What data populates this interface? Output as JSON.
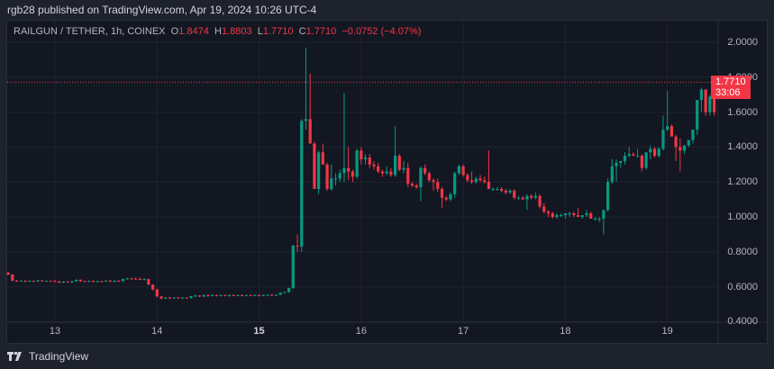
{
  "header": {
    "published": "rgb28 published on TradingView.com, Apr 19, 2024 10:26 UTC-4"
  },
  "legend": {
    "symbol": "RAILGUN / TETHER, 1h, COINEX",
    "o_label": "O",
    "o": "1.8474",
    "h_label": "H",
    "h": "1.8803",
    "l_label": "L",
    "l": "1.7710",
    "c_label": "C",
    "c": "1.7710",
    "change": "−0.0752 (−4.07%)"
  },
  "last_price": {
    "price": "1.7710",
    "countdown": "33:06",
    "color": "#f23645"
  },
  "colors": {
    "up": "#089981",
    "down": "#f23645",
    "background": "#131722",
    "grid": "#1f2330"
  },
  "footer": {
    "brand": "TradingView"
  },
  "chart_data": {
    "type": "candlestick",
    "title": "RAILGUN / TETHER, 1h, COINEX",
    "xlabel": "",
    "ylabel": "",
    "ylim": [
      0.4,
      2.0
    ],
    "y_ticks": [
      "2.0000",
      "1.8000",
      "1.6000",
      "1.4000",
      "1.2000",
      "1.0000",
      "0.8000",
      "0.6000",
      "0.4000"
    ],
    "x_ticks": [
      {
        "label": "13",
        "hour": 0,
        "bold": false
      },
      {
        "label": "14",
        "hour": 24,
        "bold": false
      },
      {
        "label": "15",
        "hour": 48,
        "bold": true
      },
      {
        "label": "16",
        "hour": 72,
        "bold": false
      },
      {
        "label": "17",
        "hour": 96,
        "bold": false
      },
      {
        "label": "18",
        "hour": 120,
        "bold": false
      },
      {
        "label": "19",
        "hour": 144,
        "bold": false
      }
    ],
    "start_hour": -11,
    "last_price": 1.771,
    "ohlc": [
      [
        0.68,
        0.685,
        0.665,
        0.67
      ],
      [
        0.67,
        0.672,
        0.63,
        0.635
      ],
      [
        0.635,
        0.64,
        0.628,
        0.632
      ],
      [
        0.632,
        0.638,
        0.628,
        0.634
      ],
      [
        0.634,
        0.638,
        0.626,
        0.63
      ],
      [
        0.63,
        0.636,
        0.626,
        0.634
      ],
      [
        0.634,
        0.636,
        0.628,
        0.63
      ],
      [
        0.63,
        0.64,
        0.628,
        0.636
      ],
      [
        0.636,
        0.638,
        0.628,
        0.632
      ],
      [
        0.632,
        0.636,
        0.628,
        0.634
      ],
      [
        0.634,
        0.636,
        0.63,
        0.632
      ],
      [
        0.632,
        0.64,
        0.628,
        0.63
      ],
      [
        0.63,
        0.634,
        0.62,
        0.624
      ],
      [
        0.624,
        0.632,
        0.62,
        0.63
      ],
      [
        0.63,
        0.634,
        0.624,
        0.626
      ],
      [
        0.626,
        0.634,
        0.622,
        0.632
      ],
      [
        0.632,
        0.642,
        0.628,
        0.64
      ],
      [
        0.64,
        0.642,
        0.628,
        0.632
      ],
      [
        0.632,
        0.636,
        0.626,
        0.63
      ],
      [
        0.63,
        0.636,
        0.626,
        0.634
      ],
      [
        0.634,
        0.636,
        0.626,
        0.628
      ],
      [
        0.628,
        0.634,
        0.624,
        0.632
      ],
      [
        0.632,
        0.634,
        0.624,
        0.63
      ],
      [
        0.63,
        0.638,
        0.628,
        0.636
      ],
      [
        0.636,
        0.638,
        0.626,
        0.63
      ],
      [
        0.63,
        0.638,
        0.624,
        0.634
      ],
      [
        0.634,
        0.64,
        0.628,
        0.632
      ],
      [
        0.632,
        0.646,
        0.63,
        0.644
      ],
      [
        0.644,
        0.652,
        0.64,
        0.648
      ],
      [
        0.648,
        0.652,
        0.64,
        0.646
      ],
      [
        0.646,
        0.654,
        0.64,
        0.644
      ],
      [
        0.644,
        0.652,
        0.638,
        0.642
      ],
      [
        0.642,
        0.648,
        0.636,
        0.644
      ],
      [
        0.644,
        0.646,
        0.61,
        0.612
      ],
      [
        0.612,
        0.614,
        0.58,
        0.584
      ],
      [
        0.584,
        0.59,
        0.54,
        0.545
      ],
      [
        0.545,
        0.548,
        0.53,
        0.532
      ],
      [
        0.532,
        0.54,
        0.53,
        0.538
      ],
      [
        0.538,
        0.542,
        0.532,
        0.536
      ],
      [
        0.536,
        0.54,
        0.532,
        0.538
      ],
      [
        0.538,
        0.542,
        0.532,
        0.534
      ],
      [
        0.534,
        0.54,
        0.53,
        0.538
      ],
      [
        0.538,
        0.54,
        0.532,
        0.536
      ],
      [
        0.536,
        0.548,
        0.532,
        0.546
      ],
      [
        0.546,
        0.554,
        0.54,
        0.55
      ],
      [
        0.55,
        0.552,
        0.54,
        0.544
      ],
      [
        0.544,
        0.556,
        0.54,
        0.552
      ],
      [
        0.552,
        0.556,
        0.542,
        0.548
      ],
      [
        0.548,
        0.556,
        0.544,
        0.552
      ],
      [
        0.552,
        0.556,
        0.544,
        0.55
      ],
      [
        0.55,
        0.556,
        0.544,
        0.552
      ],
      [
        0.552,
        0.554,
        0.544,
        0.548
      ],
      [
        0.548,
        0.556,
        0.544,
        0.552
      ],
      [
        0.552,
        0.556,
        0.546,
        0.55
      ],
      [
        0.55,
        0.556,
        0.546,
        0.552
      ],
      [
        0.552,
        0.556,
        0.546,
        0.548
      ],
      [
        0.548,
        0.556,
        0.544,
        0.552
      ],
      [
        0.552,
        0.554,
        0.546,
        0.55
      ],
      [
        0.55,
        0.556,
        0.546,
        0.552
      ],
      [
        0.552,
        0.556,
        0.544,
        0.55
      ],
      [
        0.55,
        0.556,
        0.546,
        0.552
      ],
      [
        0.552,
        0.556,
        0.546,
        0.554
      ],
      [
        0.554,
        0.558,
        0.548,
        0.552
      ],
      [
        0.552,
        0.556,
        0.546,
        0.554
      ],
      [
        0.554,
        0.568,
        0.552,
        0.566
      ],
      [
        0.566,
        0.574,
        0.562,
        0.57
      ],
      [
        0.57,
        0.594,
        0.566,
        0.592
      ],
      [
        0.592,
        0.84,
        0.588,
        0.835
      ],
      [
        0.835,
        0.9,
        0.8,
        0.83
      ],
      [
        0.83,
        1.56,
        0.8,
        1.55
      ],
      [
        1.55,
        1.97,
        1.5,
        1.56
      ],
      [
        1.56,
        1.82,
        1.44,
        1.42
      ],
      [
        1.42,
        1.43,
        1.18,
        1.16
      ],
      [
        1.16,
        1.38,
        1.13,
        1.37
      ],
      [
        1.37,
        1.42,
        1.3,
        1.3
      ],
      [
        1.3,
        1.31,
        1.15,
        1.16
      ],
      [
        1.16,
        1.3,
        1.15,
        1.22
      ],
      [
        1.22,
        1.25,
        1.18,
        1.22
      ],
      [
        1.22,
        1.27,
        1.2,
        1.25
      ],
      [
        1.25,
        1.71,
        1.2,
        1.28
      ],
      [
        1.28,
        1.4,
        1.21,
        1.26
      ],
      [
        1.26,
        1.27,
        1.2,
        1.23
      ],
      [
        1.23,
        1.39,
        1.22,
        1.38
      ],
      [
        1.38,
        1.4,
        1.3,
        1.33
      ],
      [
        1.33,
        1.36,
        1.3,
        1.34
      ],
      [
        1.34,
        1.36,
        1.28,
        1.3
      ],
      [
        1.3,
        1.32,
        1.27,
        1.29
      ],
      [
        1.29,
        1.31,
        1.25,
        1.26
      ],
      [
        1.26,
        1.27,
        1.23,
        1.25
      ],
      [
        1.25,
        1.29,
        1.24,
        1.26
      ],
      [
        1.26,
        1.28,
        1.23,
        1.24
      ],
      [
        1.24,
        1.52,
        1.23,
        1.35
      ],
      [
        1.35,
        1.36,
        1.26,
        1.27
      ],
      [
        1.27,
        1.32,
        1.25,
        1.28
      ],
      [
        1.28,
        1.31,
        1.17,
        1.19
      ],
      [
        1.19,
        1.2,
        1.17,
        1.18
      ],
      [
        1.18,
        1.19,
        1.16,
        1.17
      ],
      [
        1.17,
        1.29,
        1.09,
        1.28
      ],
      [
        1.28,
        1.3,
        1.24,
        1.25
      ],
      [
        1.25,
        1.26,
        1.2,
        1.21
      ],
      [
        1.21,
        1.22,
        1.15,
        1.2
      ],
      [
        1.2,
        1.22,
        1.14,
        1.16
      ],
      [
        1.16,
        1.17,
        1.05,
        1.11
      ],
      [
        1.11,
        1.12,
        1.09,
        1.1
      ],
      [
        1.1,
        1.14,
        1.09,
        1.13
      ],
      [
        1.13,
        1.26,
        1.11,
        1.25
      ],
      [
        1.25,
        1.3,
        1.24,
        1.29
      ],
      [
        1.29,
        1.3,
        1.23,
        1.24
      ],
      [
        1.24,
        1.25,
        1.2,
        1.21
      ],
      [
        1.21,
        1.26,
        1.19,
        1.2
      ],
      [
        1.2,
        1.23,
        1.19,
        1.22
      ],
      [
        1.22,
        1.24,
        1.2,
        1.21
      ],
      [
        1.21,
        1.23,
        1.19,
        1.2
      ],
      [
        1.2,
        1.38,
        1.19,
        1.16
      ],
      [
        1.16,
        1.17,
        1.15,
        1.16
      ],
      [
        1.16,
        1.17,
        1.15,
        1.16
      ],
      [
        1.16,
        1.17,
        1.14,
        1.15
      ],
      [
        1.15,
        1.16,
        1.13,
        1.14
      ],
      [
        1.14,
        1.16,
        1.13,
        1.15
      ],
      [
        1.15,
        1.16,
        1.1,
        1.11
      ],
      [
        1.11,
        1.12,
        1.1,
        1.11
      ],
      [
        1.11,
        1.12,
        1.1,
        1.1
      ],
      [
        1.1,
        1.13,
        1.04,
        1.12
      ],
      [
        1.12,
        1.13,
        1.1,
        1.11
      ],
      [
        1.11,
        1.14,
        1.1,
        1.12
      ],
      [
        1.12,
        1.13,
        1.05,
        1.06
      ],
      [
        1.06,
        1.08,
        1.02,
        1.03
      ],
      [
        1.03,
        1.04,
        1.0,
        1.02
      ],
      [
        1.02,
        1.03,
        0.99,
        1.0
      ],
      [
        1.0,
        1.02,
        0.99,
        1.01
      ],
      [
        1.01,
        1.02,
        1.0,
        1.01
      ],
      [
        1.01,
        1.02,
        0.99,
        1.02
      ],
      [
        1.02,
        1.03,
        1.0,
        1.02
      ],
      [
        1.02,
        1.03,
        1.0,
        1.01
      ],
      [
        1.01,
        1.05,
        1.0,
        1.0
      ],
      [
        1.0,
        1.01,
        0.99,
        1.01
      ],
      [
        1.01,
        1.04,
        1.0,
        1.02
      ],
      [
        1.02,
        1.03,
        1.0,
        0.99
      ],
      [
        0.99,
        1.0,
        0.98,
        0.99
      ],
      [
        0.99,
        1.0,
        0.97,
        0.99
      ],
      [
        0.99,
        1.04,
        0.9,
        1.04
      ],
      [
        1.04,
        1.22,
        1.03,
        1.2
      ],
      [
        1.2,
        1.33,
        1.19,
        1.29
      ],
      [
        1.29,
        1.33,
        1.2,
        1.31
      ],
      [
        1.31,
        1.32,
        1.28,
        1.32
      ],
      [
        1.32,
        1.37,
        1.3,
        1.35
      ],
      [
        1.35,
        1.4,
        1.34,
        1.36
      ],
      [
        1.36,
        1.37,
        1.35,
        1.35
      ],
      [
        1.35,
        1.39,
        1.34,
        1.35
      ],
      [
        1.35,
        1.36,
        1.26,
        1.28
      ],
      [
        1.28,
        1.37,
        1.27,
        1.37
      ],
      [
        1.37,
        1.41,
        1.33,
        1.39
      ],
      [
        1.39,
        1.4,
        1.34,
        1.35
      ],
      [
        1.35,
        1.4,
        1.34,
        1.39
      ],
      [
        1.39,
        1.58,
        1.38,
        1.5
      ],
      [
        1.5,
        1.72,
        1.49,
        1.52
      ],
      [
        1.52,
        1.53,
        1.48,
        1.46
      ],
      [
        1.46,
        1.47,
        1.32,
        1.4
      ],
      [
        1.4,
        1.45,
        1.26,
        1.38
      ],
      [
        1.38,
        1.41,
        1.36,
        1.41
      ],
      [
        1.41,
        1.44,
        1.4,
        1.44
      ],
      [
        1.44,
        1.5,
        1.42,
        1.5
      ],
      [
        1.5,
        1.66,
        1.47,
        1.67
      ],
      [
        1.67,
        1.74,
        1.6,
        1.73
      ],
      [
        1.73,
        1.7,
        1.58,
        1.6
      ],
      [
        1.6,
        1.7,
        1.58,
        1.69
      ],
      [
        1.69,
        1.7,
        1.58,
        1.6
      ],
      [
        1.6,
        1.61,
        1.49,
        1.49
      ],
      [
        1.49,
        1.86,
        1.42,
        1.85
      ],
      [
        1.847,
        1.88,
        1.771,
        1.771
      ]
    ]
  }
}
